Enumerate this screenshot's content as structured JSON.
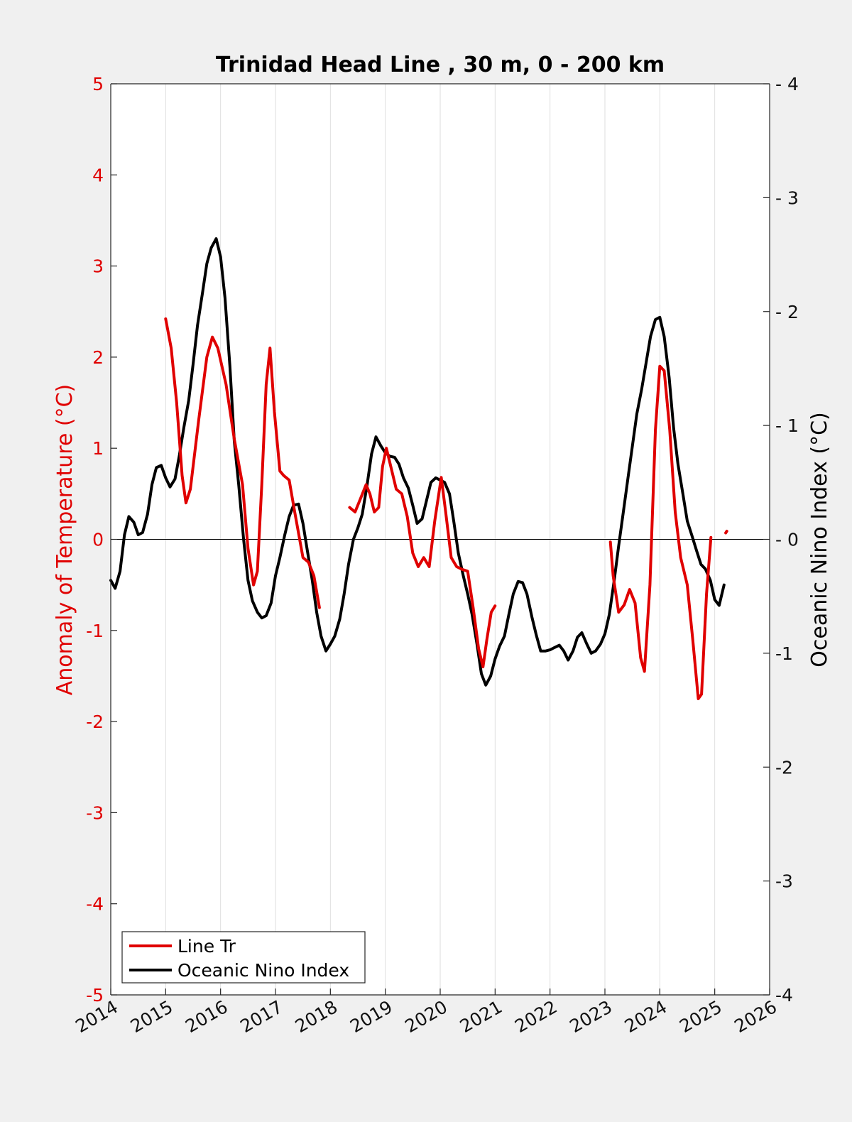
{
  "chart_data": {
    "type": "line",
    "title": "Trinidad Head Line , 30 m, 0 - 200 km",
    "xlabel": "",
    "x_ticks": [
      "2014",
      "2015",
      "2016",
      "2017",
      "2018",
      "2019",
      "2020",
      "2021",
      "2022",
      "2023",
      "2024",
      "2025",
      "2026"
    ],
    "xlim": [
      2014,
      2026
    ],
    "left_axis": {
      "label": "Anomaly of Temperature (°C)",
      "ylim": [
        -5,
        5
      ],
      "ticks": [
        "5",
        "4",
        "3",
        "2",
        "1",
        "0",
        "-1",
        "-2",
        "-3",
        "-4",
        "-5"
      ],
      "color": "#e00000"
    },
    "right_axis": {
      "label": "Oceanic Nino Index (°C)",
      "ylim": [
        -4,
        4
      ],
      "ticks": [
        "4",
        "3",
        "2",
        "1",
        "0",
        "-1",
        "-2",
        "-3",
        "-4"
      ],
      "color": "#000000"
    },
    "grid": "vertical",
    "legend": {
      "position": "bottom-left",
      "entries": [
        "Line Tr",
        "Oceanic Nino Index"
      ]
    },
    "series": [
      {
        "name": "Line Tr",
        "axis": "left",
        "color": "#e00000",
        "segments": [
          [
            [
              2015.0,
              2.42
            ],
            [
              2015.1,
              2.1
            ],
            [
              2015.2,
              1.5
            ],
            [
              2015.3,
              0.7
            ],
            [
              2015.37,
              0.4
            ],
            [
              2015.45,
              0.55
            ],
            [
              2015.6,
              1.3
            ],
            [
              2015.75,
              2.0
            ],
            [
              2015.85,
              2.22
            ],
            [
              2015.95,
              2.1
            ],
            [
              2016.1,
              1.7
            ],
            [
              2016.25,
              1.1
            ],
            [
              2016.4,
              0.6
            ],
            [
              2016.5,
              -0.1
            ],
            [
              2016.6,
              -0.5
            ],
            [
              2016.67,
              -0.35
            ],
            [
              2016.75,
              0.6
            ],
            [
              2016.83,
              1.7
            ],
            [
              2016.9,
              2.1
            ],
            [
              2016.98,
              1.4
            ],
            [
              2017.08,
              0.75
            ],
            [
              2017.15,
              0.7
            ],
            [
              2017.25,
              0.65
            ],
            [
              2017.35,
              0.3
            ],
            [
              2017.5,
              -0.2
            ],
            [
              2017.6,
              -0.25
            ],
            [
              2017.7,
              -0.4
            ],
            [
              2017.8,
              -0.75
            ]
          ],
          [
            [
              2018.35,
              0.35
            ],
            [
              2018.45,
              0.3
            ],
            [
              2018.55,
              0.45
            ],
            [
              2018.65,
              0.6
            ],
            [
              2018.72,
              0.5
            ],
            [
              2018.8,
              0.3
            ],
            [
              2018.88,
              0.35
            ],
            [
              2018.95,
              0.8
            ],
            [
              2019.02,
              1.0
            ],
            [
              2019.1,
              0.8
            ],
            [
              2019.2,
              0.55
            ],
            [
              2019.3,
              0.5
            ],
            [
              2019.4,
              0.25
            ],
            [
              2019.5,
              -0.15
            ],
            [
              2019.6,
              -0.3
            ],
            [
              2019.7,
              -0.2
            ],
            [
              2019.8,
              -0.3
            ],
            [
              2019.9,
              0.2
            ],
            [
              2020.02,
              0.68
            ],
            [
              2020.1,
              0.3
            ],
            [
              2020.2,
              -0.2
            ],
            [
              2020.3,
              -0.3
            ],
            [
              2020.4,
              -0.33
            ],
            [
              2020.5,
              -0.35
            ],
            [
              2020.6,
              -0.75
            ],
            [
              2020.7,
              -1.2
            ],
            [
              2020.78,
              -1.4
            ],
            [
              2020.85,
              -1.1
            ],
            [
              2020.93,
              -0.8
            ],
            [
              2021.0,
              -0.73
            ]
          ],
          [
            [
              2023.1,
              -0.03
            ],
            [
              2023.15,
              -0.4
            ],
            [
              2023.25,
              -0.8
            ],
            [
              2023.35,
              -0.72
            ],
            [
              2023.45,
              -0.55
            ],
            [
              2023.55,
              -0.7
            ],
            [
              2023.65,
              -1.3
            ],
            [
              2023.72,
              -1.45
            ],
            [
              2023.82,
              -0.5
            ],
            [
              2023.92,
              1.2
            ],
            [
              2024.0,
              1.9
            ],
            [
              2024.08,
              1.85
            ],
            [
              2024.18,
              1.2
            ],
            [
              2024.28,
              0.3
            ],
            [
              2024.38,
              -0.2
            ],
            [
              2024.5,
              -0.5
            ],
            [
              2024.6,
              -1.1
            ],
            [
              2024.7,
              -1.75
            ],
            [
              2024.76,
              -1.7
            ],
            [
              2024.85,
              -0.6
            ],
            [
              2024.93,
              0.02
            ]
          ],
          [
            [
              2025.2,
              0.07
            ],
            [
              2025.22,
              0.09
            ]
          ]
        ]
      },
      {
        "name": "Oceanic Nino Index",
        "axis": "right",
        "color": "#000000",
        "segments": [
          [
            [
              2014.0,
              -0.36
            ],
            [
              2014.08,
              -0.43
            ],
            [
              2014.17,
              -0.28
            ],
            [
              2014.25,
              0.04
            ],
            [
              2014.33,
              0.2
            ],
            [
              2014.42,
              0.15
            ],
            [
              2014.5,
              0.04
            ],
            [
              2014.58,
              0.06
            ],
            [
              2014.67,
              0.22
            ],
            [
              2014.75,
              0.48
            ],
            [
              2014.83,
              0.63
            ],
            [
              2014.92,
              0.65
            ],
            [
              2015.0,
              0.54
            ],
            [
              2015.08,
              0.46
            ],
            [
              2015.17,
              0.53
            ],
            [
              2015.25,
              0.74
            ],
            [
              2015.33,
              0.98
            ],
            [
              2015.42,
              1.22
            ],
            [
              2015.5,
              1.54
            ],
            [
              2015.58,
              1.88
            ],
            [
              2015.67,
              2.16
            ],
            [
              2015.75,
              2.42
            ],
            [
              2015.83,
              2.56
            ],
            [
              2015.92,
              2.64
            ],
            [
              2016.0,
              2.48
            ],
            [
              2016.08,
              2.12
            ],
            [
              2016.17,
              1.52
            ],
            [
              2016.25,
              0.86
            ],
            [
              2016.33,
              0.48
            ],
            [
              2016.42,
              0.0
            ],
            [
              2016.5,
              -0.36
            ],
            [
              2016.58,
              -0.54
            ],
            [
              2016.67,
              -0.64
            ],
            [
              2016.75,
              -0.69
            ],
            [
              2016.83,
              -0.67
            ],
            [
              2016.92,
              -0.56
            ],
            [
              2017.0,
              -0.32
            ],
            [
              2017.08,
              -0.16
            ],
            [
              2017.17,
              0.04
            ],
            [
              2017.25,
              0.2
            ],
            [
              2017.33,
              0.3
            ],
            [
              2017.42,
              0.31
            ],
            [
              2017.5,
              0.14
            ],
            [
              2017.58,
              -0.1
            ],
            [
              2017.67,
              -0.36
            ],
            [
              2017.75,
              -0.64
            ],
            [
              2017.83,
              -0.85
            ],
            [
              2017.92,
              -0.98
            ],
            [
              2018.0,
              -0.92
            ],
            [
              2018.08,
              -0.85
            ],
            [
              2018.17,
              -0.7
            ],
            [
              2018.25,
              -0.48
            ],
            [
              2018.33,
              -0.22
            ],
            [
              2018.42,
              0.0
            ],
            [
              2018.5,
              0.1
            ],
            [
              2018.58,
              0.22
            ],
            [
              2018.67,
              0.48
            ],
            [
              2018.75,
              0.75
            ],
            [
              2018.83,
              0.9
            ],
            [
              2018.92,
              0.82
            ],
            [
              2019.0,
              0.76
            ],
            [
              2019.08,
              0.73
            ],
            [
              2019.17,
              0.72
            ],
            [
              2019.25,
              0.66
            ],
            [
              2019.33,
              0.54
            ],
            [
              2019.42,
              0.45
            ],
            [
              2019.5,
              0.3
            ],
            [
              2019.58,
              0.14
            ],
            [
              2019.67,
              0.18
            ],
            [
              2019.75,
              0.34
            ],
            [
              2019.83,
              0.5
            ],
            [
              2019.92,
              0.54
            ],
            [
              2020.0,
              0.52
            ],
            [
              2020.08,
              0.5
            ],
            [
              2020.17,
              0.4
            ],
            [
              2020.25,
              0.15
            ],
            [
              2020.33,
              -0.12
            ],
            [
              2020.42,
              -0.32
            ],
            [
              2020.5,
              -0.48
            ],
            [
              2020.58,
              -0.66
            ],
            [
              2020.67,
              -0.92
            ],
            [
              2020.75,
              -1.18
            ],
            [
              2020.83,
              -1.28
            ],
            [
              2020.92,
              -1.2
            ],
            [
              2021.0,
              -1.05
            ],
            [
              2021.08,
              -0.94
            ],
            [
              2021.17,
              -0.85
            ],
            [
              2021.25,
              -0.66
            ],
            [
              2021.33,
              -0.48
            ],
            [
              2021.42,
              -0.37
            ],
            [
              2021.5,
              -0.38
            ],
            [
              2021.58,
              -0.48
            ],
            [
              2021.67,
              -0.68
            ],
            [
              2021.75,
              -0.84
            ],
            [
              2021.83,
              -0.98
            ],
            [
              2021.92,
              -0.98
            ],
            [
              2022.0,
              -0.97
            ],
            [
              2022.08,
              -0.95
            ],
            [
              2022.17,
              -0.93
            ],
            [
              2022.25,
              -0.98
            ],
            [
              2022.33,
              -1.06
            ],
            [
              2022.42,
              -0.98
            ],
            [
              2022.5,
              -0.86
            ],
            [
              2022.58,
              -0.82
            ],
            [
              2022.67,
              -0.92
            ],
            [
              2022.75,
              -1.0
            ],
            [
              2022.83,
              -0.98
            ],
            [
              2022.92,
              -0.92
            ],
            [
              2023.0,
              -0.83
            ],
            [
              2023.08,
              -0.66
            ],
            [
              2023.17,
              -0.36
            ],
            [
              2023.25,
              -0.06
            ],
            [
              2023.33,
              0.22
            ],
            [
              2023.42,
              0.54
            ],
            [
              2023.5,
              0.82
            ],
            [
              2023.58,
              1.1
            ],
            [
              2023.67,
              1.32
            ],
            [
              2023.75,
              1.55
            ],
            [
              2023.83,
              1.78
            ],
            [
              2023.92,
              1.93
            ],
            [
              2024.0,
              1.95
            ],
            [
              2024.08,
              1.78
            ],
            [
              2024.17,
              1.42
            ],
            [
              2024.25,
              0.98
            ],
            [
              2024.33,
              0.66
            ],
            [
              2024.42,
              0.4
            ],
            [
              2024.5,
              0.16
            ],
            [
              2024.58,
              0.04
            ],
            [
              2024.67,
              -0.1
            ],
            [
              2024.75,
              -0.22
            ],
            [
              2024.83,
              -0.26
            ],
            [
              2024.92,
              -0.36
            ],
            [
              2025.0,
              -0.53
            ],
            [
              2025.08,
              -0.58
            ],
            [
              2025.17,
              -0.4
            ]
          ]
        ]
      }
    ]
  }
}
